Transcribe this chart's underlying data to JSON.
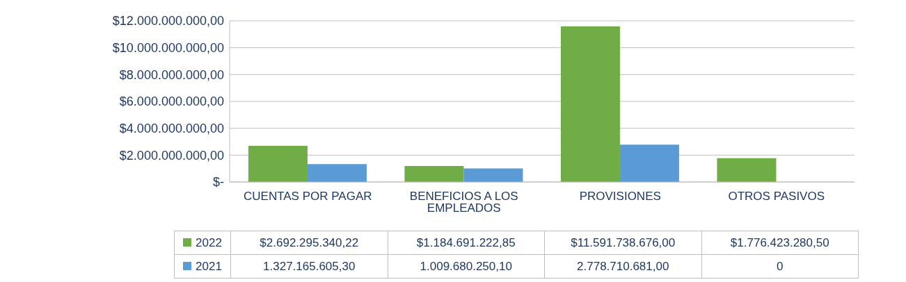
{
  "chart_data": {
    "type": "bar",
    "categories": [
      "CUENTAS POR PAGAR",
      "BENEFICIOS A LOS EMPLEADOS",
      "PROVISIONES",
      "OTROS PASIVOS"
    ],
    "series": [
      {
        "name": "2022",
        "color": "#70ad47",
        "values": [
          2692295340.22,
          1184691222.85,
          11591738676.0,
          1776423280.5
        ],
        "value_labels": [
          "$2.692.295.340,22",
          "$1.184.691.222,85",
          "$11.591.738.676,00",
          "$1.776.423.280,50"
        ]
      },
      {
        "name": "2021",
        "color": "#5b9bd5",
        "values": [
          1327165605.3,
          1009680250.1,
          2778710681.0,
          0
        ],
        "value_labels": [
          "1.327.165.605,30",
          "1.009.680.250,10",
          "2.778.710.681,00",
          "0"
        ]
      }
    ],
    "ylim": [
      0,
      12000000000
    ],
    "yticks": [
      {
        "value": 0,
        "label": "$-"
      },
      {
        "value": 2000000000,
        "label": "$2.000.000.000,00"
      },
      {
        "value": 4000000000,
        "label": "$4.000.000.000,00"
      },
      {
        "value": 6000000000,
        "label": "$6.000.000.000,00"
      },
      {
        "value": 8000000000,
        "label": "$8.000.000.000,00"
      },
      {
        "value": 10000000000,
        "label": "$10.000.000.000,00"
      },
      {
        "value": 12000000000,
        "label": "$12.000.000.000,00"
      }
    ],
    "grid": "y",
    "legend": "bottom"
  }
}
